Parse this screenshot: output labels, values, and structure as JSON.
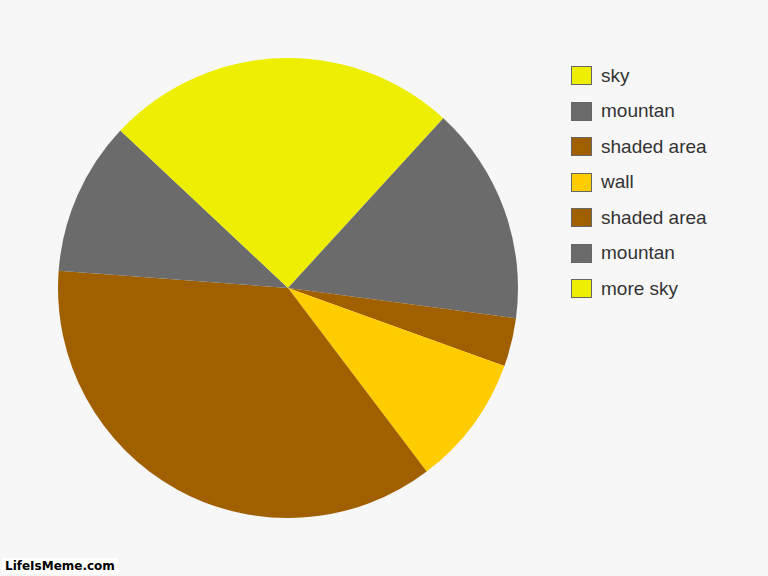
{
  "chart_data": {
    "type": "pie",
    "categories": [
      "sky",
      "mountan",
      "shaded area",
      "wall",
      "shaded area",
      "mountan",
      "more sky"
    ],
    "values": [
      11.8,
      15.3,
      3.4,
      9.2,
      36.5,
      10.8,
      13.0
    ],
    "colors": [
      "#eeee00",
      "#6b6b6b",
      "#a06000",
      "#ffcc00",
      "#a06000",
      "#6b6b6b",
      "#eeee00"
    ],
    "legend": "right"
  },
  "watermark": "LifeIsMeme.com"
}
